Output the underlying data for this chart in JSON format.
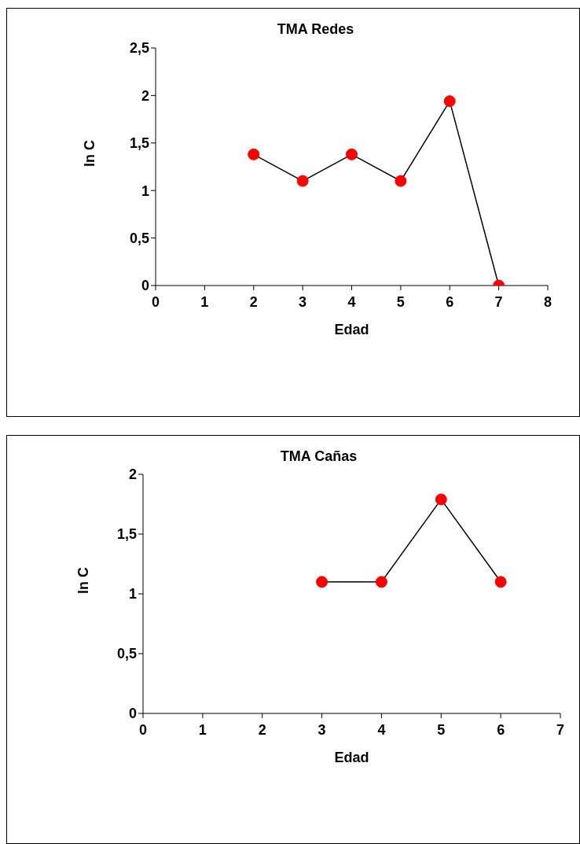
{
  "chart_data": [
    {
      "type": "line",
      "title": "TMA Redes",
      "xlabel": "Edad",
      "ylabel": "ln C",
      "x": [
        2,
        3,
        4,
        5,
        6,
        7
      ],
      "series": [
        {
          "color": "#000000",
          "colors": [
            "#ff0000",
            "#ff0000",
            "#ff0000",
            "#ff0000",
            "#ff0000",
            "#ff0000"
          ],
          "values": [
            1.38,
            1.1,
            1.38,
            1.1,
            1.94,
            0
          ]
        }
      ],
      "xlim": [
        0,
        8
      ],
      "xticks": [
        0,
        1,
        2,
        3,
        4,
        5,
        6,
        7,
        8
      ],
      "ylim": [
        0,
        2.5
      ],
      "yticks": [
        0,
        {
          "value": 0.5,
          "label": "0,5"
        },
        1,
        {
          "value": 1.5,
          "label": "1,5"
        },
        2,
        {
          "value": 2.5,
          "label": "2,5"
        }
      ],
      "grid": false,
      "legend": false,
      "marker": "circle",
      "line_style": "solid"
    },
    {
      "type": "line",
      "title": "TMA Cañas",
      "xlabel": "Edad",
      "ylabel": "ln C",
      "x": [
        3,
        4,
        5,
        6
      ],
      "series": [
        {
          "color": "#000000",
          "colors": [
            "#ff0000",
            "#ff0000",
            "#ff0000",
            "#ff0000"
          ],
          "values": [
            1.1,
            1.1,
            1.79,
            1.1
          ]
        }
      ],
      "xlim": [
        0,
        7
      ],
      "xticks": [
        0,
        1,
        2,
        3,
        4,
        5,
        6,
        7
      ],
      "ylim": [
        0,
        2
      ],
      "yticks": [
        0,
        {
          "value": 0.5,
          "label": "0,5"
        },
        1,
        {
          "value": 1.5,
          "label": "1,5"
        },
        2
      ],
      "grid": false,
      "legend": false,
      "marker": "circle",
      "line_style": "solid"
    }
  ]
}
